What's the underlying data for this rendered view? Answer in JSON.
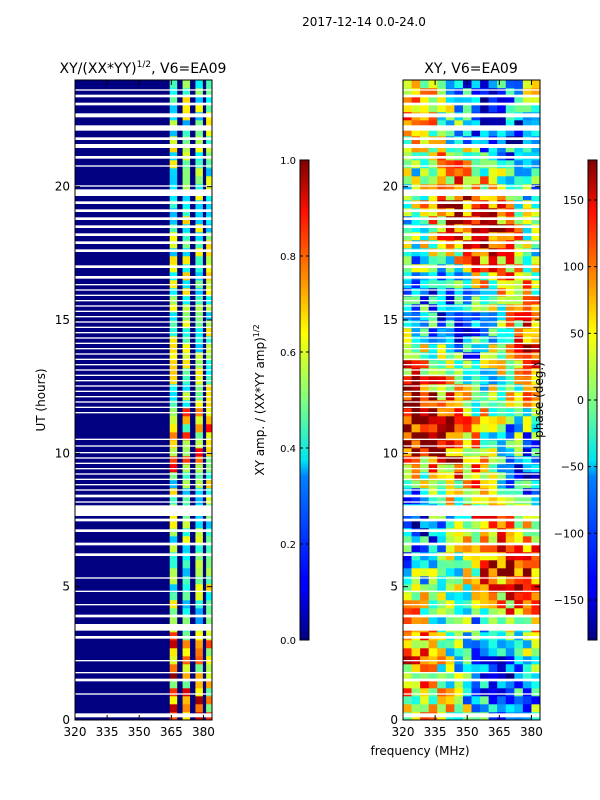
{
  "chart_data": {
    "type": "heatmap",
    "suptitle": "2017-12-14 0.0-24.0",
    "shared_xlabel": "frequency (MHz)",
    "panels": [
      {
        "id": "ratio",
        "title_main": "XY/(XX*YY)",
        "title_exp": "1/2",
        "title_tail": ", V6=EA09",
        "ylabel": "UT (hours)",
        "xlim": [
          320,
          384
        ],
        "ylim": [
          0,
          24
        ],
        "xticks": [
          320,
          335,
          350,
          365,
          380
        ],
        "yticks": [
          0,
          5,
          10,
          15,
          20
        ],
        "background_value": 0.0,
        "bright_channel_centers_mhz": [
          366,
          372,
          378,
          383
        ],
        "colorbar": {
          "label_main": "XY amp. / (XX*YY amp)",
          "label_exp": "1/2",
          "min": 0.0,
          "max": 1.0,
          "ticks": [
            0.0,
            0.2,
            0.4,
            0.6,
            0.8,
            1.0
          ],
          "tick_labels": [
            "0.0",
            "0.2",
            "0.4",
            "0.6",
            "0.8",
            "1.0"
          ],
          "colormap": "jet"
        }
      },
      {
        "id": "phase",
        "title_main": "XY, V6=EA09",
        "ylabel": "",
        "xlim": [
          320,
          384
        ],
        "ylim": [
          0,
          24
        ],
        "xticks": [
          320,
          335,
          350,
          365,
          380
        ],
        "yticks": [
          0,
          5,
          10,
          15,
          20
        ],
        "colorbar": {
          "label_main": "phase (deg.)",
          "min": -180,
          "max": 180,
          "ticks": [
            -150,
            -100,
            -50,
            0,
            50,
            100,
            150
          ],
          "tick_labels": [
            "−150",
            "−100",
            "−50",
            "0",
            "50",
            "100",
            "150"
          ],
          "colormap": "jet"
        }
      }
    ],
    "flagged_ut_ranges_hours": [
      [
        0.1,
        0.25
      ],
      [
        0.95,
        1.0
      ],
      [
        1.45,
        1.55
      ],
      [
        1.75,
        1.8
      ],
      [
        2.2,
        2.25
      ],
      [
        3.05,
        3.15
      ],
      [
        3.35,
        3.6
      ],
      [
        3.85,
        3.95
      ],
      [
        4.3,
        4.35
      ],
      [
        4.8,
        4.85
      ],
      [
        5.3,
        5.35
      ],
      [
        6.15,
        6.25
      ],
      [
        6.55,
        6.65
      ],
      [
        7.05,
        7.15
      ],
      [
        7.45,
        7.55
      ],
      [
        7.65,
        8.05
      ],
      [
        8.15,
        8.2
      ],
      [
        8.35,
        8.45
      ],
      [
        8.6,
        8.65
      ],
      [
        8.8,
        8.85
      ],
      [
        9.0,
        9.05
      ],
      [
        9.2,
        9.25
      ],
      [
        9.4,
        9.45
      ],
      [
        9.6,
        9.65
      ],
      [
        9.8,
        9.85
      ],
      [
        10.0,
        10.05
      ],
      [
        10.25,
        10.3
      ],
      [
        10.5,
        10.55
      ],
      [
        11.5,
        11.55
      ],
      [
        11.7,
        11.75
      ],
      [
        11.9,
        11.95
      ],
      [
        12.1,
        12.15
      ],
      [
        12.3,
        12.35
      ],
      [
        12.5,
        12.55
      ],
      [
        12.7,
        12.75
      ],
      [
        12.9,
        12.95
      ],
      [
        13.1,
        13.15
      ],
      [
        13.3,
        13.35
      ],
      [
        13.5,
        13.55
      ],
      [
        13.7,
        13.75
      ],
      [
        13.9,
        13.95
      ],
      [
        14.1,
        14.15
      ],
      [
        14.3,
        14.35
      ],
      [
        14.5,
        14.55
      ],
      [
        14.7,
        14.75
      ],
      [
        14.9,
        14.95
      ],
      [
        15.1,
        15.15
      ],
      [
        15.3,
        15.35
      ],
      [
        15.5,
        15.55
      ],
      [
        15.7,
        15.75
      ],
      [
        15.9,
        15.95
      ],
      [
        16.1,
        16.15
      ],
      [
        16.3,
        16.35
      ],
      [
        16.55,
        16.65
      ],
      [
        16.95,
        17.05
      ],
      [
        17.55,
        17.65
      ],
      [
        17.85,
        17.95
      ],
      [
        18.15,
        18.25
      ],
      [
        18.45,
        18.55
      ],
      [
        18.75,
        18.85
      ],
      [
        19.05,
        19.15
      ],
      [
        19.35,
        19.45
      ],
      [
        19.65,
        19.9
      ],
      [
        20.0,
        20.05
      ],
      [
        20.75,
        20.8
      ],
      [
        21.05,
        21.15
      ],
      [
        21.45,
        21.6
      ],
      [
        21.75,
        21.85
      ],
      [
        22.1,
        22.3
      ],
      [
        22.6,
        22.75
      ],
      [
        23.05,
        23.15
      ],
      [
        23.35,
        23.45
      ],
      [
        23.6,
        23.65
      ]
    ]
  }
}
